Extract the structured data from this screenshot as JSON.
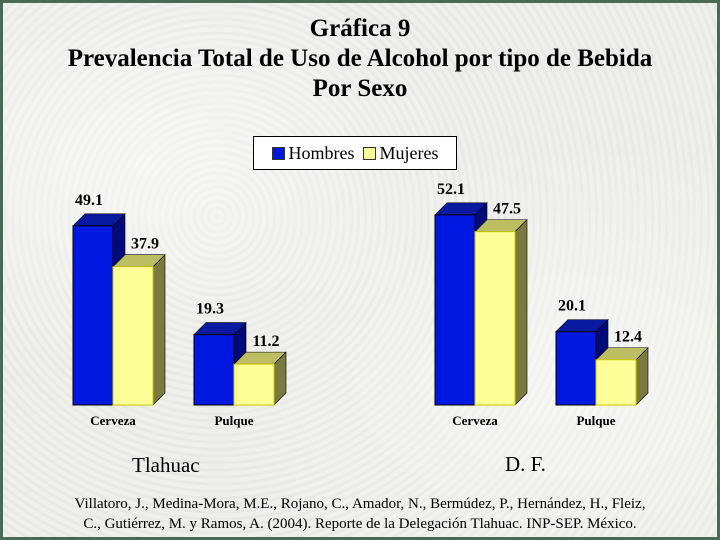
{
  "title": {
    "line1": "Gráfica 9",
    "line2": "Prevalencia Total de Uso de Alcohol por tipo de Bebida",
    "line3": "Por Sexo"
  },
  "legend": [
    {
      "name": "Hombres",
      "color": "#0018e0"
    },
    {
      "name": "Mujeres",
      "color": "#ffff99"
    }
  ],
  "chart_data": {
    "type": "bar",
    "categories": [
      "Cerveza",
      "Pulque"
    ],
    "groups": [
      {
        "name": "Tlahuac",
        "series": [
          {
            "name": "Hombres",
            "values": [
              49.1,
              19.3
            ]
          },
          {
            "name": "Mujeres",
            "values": [
              37.9,
              11.2
            ]
          }
        ]
      },
      {
        "name": "D. F.",
        "series": [
          {
            "name": "Hombres",
            "values": [
              52.1,
              20.1
            ]
          },
          {
            "name": "Mujeres",
            "values": [
              47.5,
              12.4
            ]
          }
        ]
      }
    ],
    "ylim": [
      0,
      60
    ],
    "grid": false,
    "legend_position": "top-center"
  },
  "citation": {
    "line1": "Villatoro, J., Medina-Mora, M.E., Rojano, C., Amador, N., Bermúdez, P., Hernández, H., Fleiz,",
    "line2": "C., Gutiérrez, M. y Ramos, A. (2004). Reporte de la Delegación Tlahuac. INP-SEP. México."
  }
}
